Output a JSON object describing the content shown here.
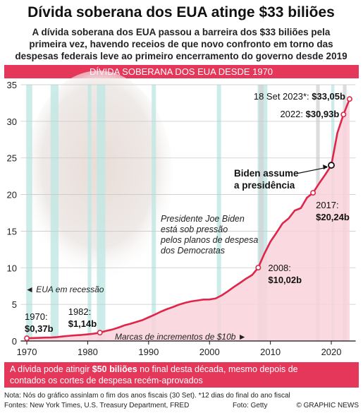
{
  "chart_data": {
    "type": "line",
    "title": "Dívida soberana dos EUA atinge $33 biliões",
    "subtitle": [
      "A dívida soberana dos EUA passou a barreira dos $33 biliões pela",
      "primeira vez, havendo receios de que novo confronto em torno das",
      "despesas federais leve ao primeiro encerramento do governo desde 2019"
    ],
    "section_title": "DÍVIDA SOBERANA DOS EUA DESDE 1970",
    "x": [
      1970,
      1971,
      1972,
      1973,
      1974,
      1975,
      1976,
      1977,
      1978,
      1979,
      1980,
      1981,
      1982,
      1983,
      1984,
      1985,
      1986,
      1987,
      1988,
      1989,
      1990,
      1991,
      1992,
      1993,
      1994,
      1995,
      1996,
      1997,
      1998,
      1999,
      2000,
      2001,
      2002,
      2003,
      2004,
      2005,
      2006,
      2007,
      2008,
      2009,
      2010,
      2011,
      2012,
      2013,
      2014,
      2015,
      2016,
      2017,
      2018,
      2019,
      2020,
      2021,
      2022,
      2023
    ],
    "values": [
      0.37,
      0.4,
      0.43,
      0.46,
      0.48,
      0.54,
      0.63,
      0.71,
      0.78,
      0.83,
      0.91,
      1.0,
      1.14,
      1.37,
      1.56,
      1.82,
      2.13,
      2.35,
      2.6,
      2.86,
      3.23,
      3.6,
      4.0,
      4.35,
      4.64,
      4.97,
      5.22,
      5.41,
      5.53,
      5.66,
      5.67,
      5.81,
      6.23,
      6.78,
      7.38,
      7.93,
      8.51,
      9.01,
      10.02,
      11.91,
      13.56,
      14.79,
      16.07,
      16.74,
      17.82,
      18.15,
      19.57,
      20.24,
      21.52,
      22.72,
      24.0,
      28.43,
      30.93,
      33.05
    ],
    "point_labels": [
      "1970:",
      null,
      null,
      null,
      null,
      null,
      null,
      null,
      null,
      null,
      null,
      null,
      "1982:",
      null,
      null,
      null,
      null,
      null,
      null,
      null,
      null,
      null,
      null,
      null,
      null,
      null,
      null,
      null,
      null,
      null,
      null,
      null,
      null,
      null,
      null,
      null,
      null,
      null,
      "2008:",
      null,
      null,
      null,
      null,
      null,
      null,
      null,
      null,
      "2017:",
      null,
      null,
      null,
      null,
      "2022: ",
      "18 Set 2023*: "
    ],
    "value_labels": [
      "$0,37b",
      null,
      null,
      null,
      null,
      null,
      null,
      null,
      null,
      null,
      null,
      null,
      "$1,14b",
      null,
      null,
      null,
      null,
      null,
      null,
      null,
      null,
      null,
      null,
      null,
      null,
      null,
      null,
      null,
      null,
      null,
      null,
      null,
      null,
      null,
      null,
      null,
      null,
      null,
      "$10,02b",
      null,
      null,
      null,
      null,
      null,
      null,
      null,
      null,
      "$20,24b",
      null,
      null,
      null,
      null,
      "$30,93b",
      "$33,05b"
    ],
    "color": "#e0244a",
    "area_color": "#f9d3db",
    "xlim": [
      1969,
      2024
    ],
    "xticks": [
      1970,
      1980,
      1990,
      2000,
      2010,
      2020
    ],
    "ylim": [
      0,
      35
    ],
    "yticks": [
      0,
      5,
      10,
      15,
      20,
      25,
      30,
      35
    ],
    "grid": true,
    "recessions": [
      [
        1969.9,
        1970.9
      ],
      [
        1973.9,
        1975.2
      ],
      [
        1980.0,
        1980.6
      ],
      [
        1981.5,
        1982.9
      ],
      [
        1990.5,
        1991.2
      ],
      [
        2001.2,
        2001.9
      ],
      [
        2007.9,
        2009.5
      ],
      [
        2020.0,
        2020.5
      ]
    ],
    "recession_color": "#bfe7e4",
    "recession_label": "◄ EUA em recessão",
    "increments": [
      [
        2008.1,
        2008.9
      ],
      [
        2017.5,
        2018.1
      ],
      [
        2021.9,
        2022.5
      ]
    ],
    "increment_color": "#d2d4d6",
    "increment_label": "Marcas de incrementos de $10b ►",
    "highlight": {
      "x": 2020,
      "value": 24.0,
      "label": [
        "Biden assume",
        "a presidência"
      ]
    },
    "photo_caption": [
      "Presidente Joe Biden",
      "está sob pressão",
      "pelos planos de despesa",
      "dos Democratas"
    ]
  },
  "footer": {
    "headline": [
      "A dívida pode atingir ",
      "$50 biliões",
      " no final desta década, mesmo depois de",
      "contados os cortes de despesa recém-aprovados"
    ],
    "note": "Nota: Nós do gráfico assinlam o fim dos anos fiscais (30 Set). *12 dias do final do ano fiscal",
    "sources": "Fontes: New York Times, U.S. Treasury Department, FRED",
    "photo_credit": "Foto: Getty",
    "copyright": "© GRAPHIC NEWS"
  }
}
